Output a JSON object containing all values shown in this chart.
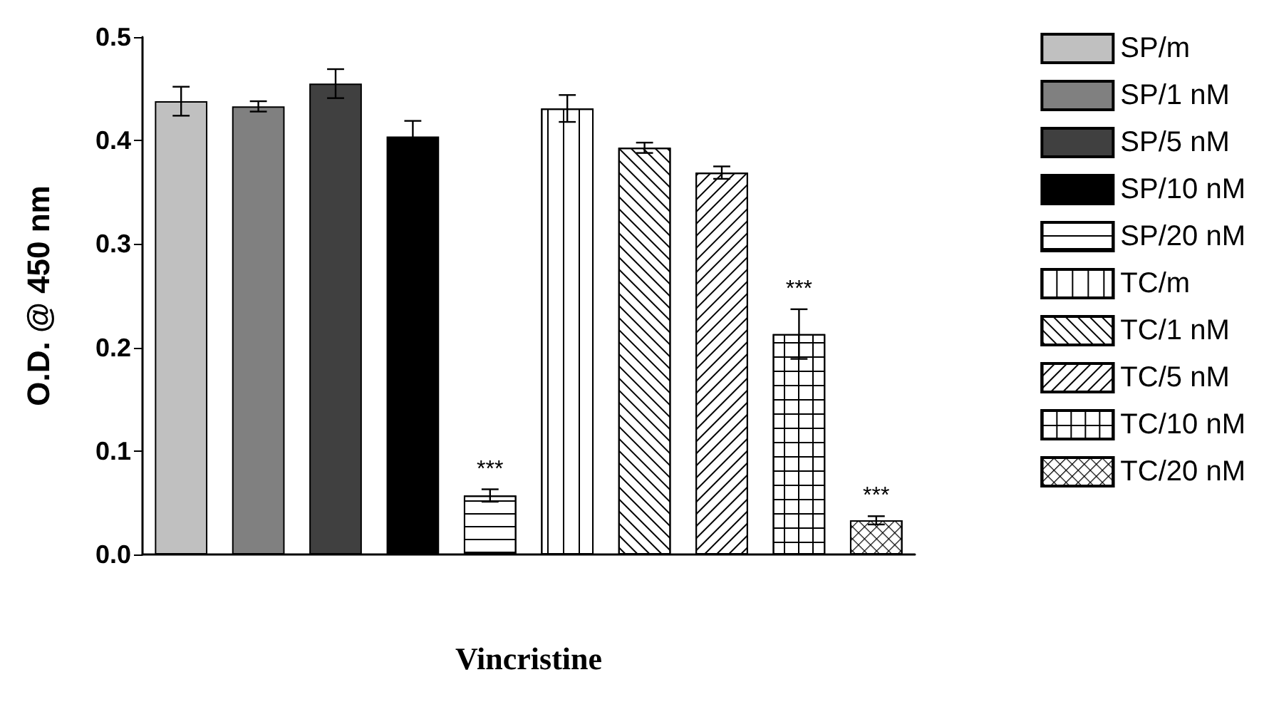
{
  "chart_data": {
    "type": "bar",
    "xlabel": "Vincristine",
    "ylabel": "O.D. @ 450 nm",
    "categories": [
      null,
      null,
      null,
      null,
      null,
      null,
      null,
      null,
      null,
      null
    ],
    "stacked": true,
    "ylim": [
      0,
      0.5
    ],
    "yticks": [
      "0.0",
      0.1,
      0.2,
      0.3,
      0.4,
      0.5
    ],
    "grid": false,
    "legend": "right",
    "series": [
      {
        "name": "SP/m",
        "color": "#c0c0c0",
        "values": [
          0.438,
          null,
          null,
          null,
          null,
          null,
          null,
          null,
          null,
          null
        ],
        "errors": [
          0.014,
          null,
          null,
          null,
          null,
          null,
          null,
          null,
          null,
          null
        ]
      },
      {
        "name": "SP/1 nM",
        "color": "#808080",
        "values": [
          null,
          0.433,
          null,
          null,
          null,
          null,
          null,
          null,
          null,
          null
        ],
        "errors": [
          null,
          0.005,
          null,
          null,
          null,
          null,
          null,
          null,
          null,
          null
        ]
      },
      {
        "name": "SP/5 nM",
        "color": "#404040",
        "values": [
          null,
          null,
          0.455,
          null,
          null,
          null,
          null,
          null,
          null,
          null
        ],
        "errors": [
          null,
          null,
          0.014,
          null,
          null,
          null,
          null,
          null,
          null,
          null
        ]
      },
      {
        "name": "SP/10 nM",
        "color": "#000000",
        "values": [
          null,
          null,
          null,
          0.404,
          null,
          null,
          null,
          null,
          null,
          null
        ],
        "errors": [
          null,
          null,
          null,
          0.015,
          null,
          null,
          null,
          null,
          null,
          null
        ]
      },
      {
        "name": "SP/20 nM",
        "color": "#ffffff",
        "values": [
          null,
          null,
          null,
          null,
          0.057,
          null,
          null,
          null,
          null,
          null
        ],
        "errors": [
          null,
          null,
          null,
          null,
          0.006,
          null,
          null,
          null,
          null,
          null
        ],
        "value_labels": [
          null,
          null,
          null,
          null,
          "***",
          null,
          null,
          null,
          null,
          null
        ]
      },
      {
        "name": "TC/m",
        "color": "#ffffff",
        "values": [
          null,
          null,
          null,
          null,
          null,
          0.431,
          null,
          null,
          null,
          null
        ],
        "errors": [
          null,
          null,
          null,
          null,
          null,
          0.013,
          null,
          null,
          null,
          null
        ]
      },
      {
        "name": "TC/1 nM",
        "color": "#ffffff",
        "values": [
          null,
          null,
          null,
          null,
          null,
          null,
          0.393,
          null,
          null,
          null
        ],
        "errors": [
          null,
          null,
          null,
          null,
          null,
          null,
          0.005,
          null,
          null,
          null
        ]
      },
      {
        "name": "TC/5 nM",
        "color": "#ffffff",
        "values": [
          null,
          null,
          null,
          null,
          null,
          null,
          null,
          0.369,
          null,
          null
        ],
        "errors": [
          null,
          null,
          null,
          null,
          null,
          null,
          null,
          0.006,
          null,
          null
        ]
      },
      {
        "name": "TC/10 nM",
        "color": "#ffffff",
        "values": [
          null,
          null,
          null,
          null,
          null,
          null,
          null,
          null,
          0.213,
          null
        ],
        "errors": [
          null,
          null,
          null,
          null,
          null,
          null,
          null,
          null,
          0.024,
          null
        ],
        "value_labels": [
          null,
          null,
          null,
          null,
          null,
          null,
          null,
          null,
          "***",
          null
        ]
      },
      {
        "name": "TC/20 nM",
        "color": "#ffffff",
        "values": [
          null,
          null,
          null,
          null,
          null,
          null,
          null,
          null,
          null,
          0.033
        ],
        "errors": [
          null,
          null,
          null,
          null,
          null,
          null,
          null,
          null,
          null,
          0.004
        ],
        "value_labels": [
          null,
          null,
          null,
          null,
          null,
          null,
          null,
          null,
          null,
          "***"
        ]
      }
    ]
  }
}
